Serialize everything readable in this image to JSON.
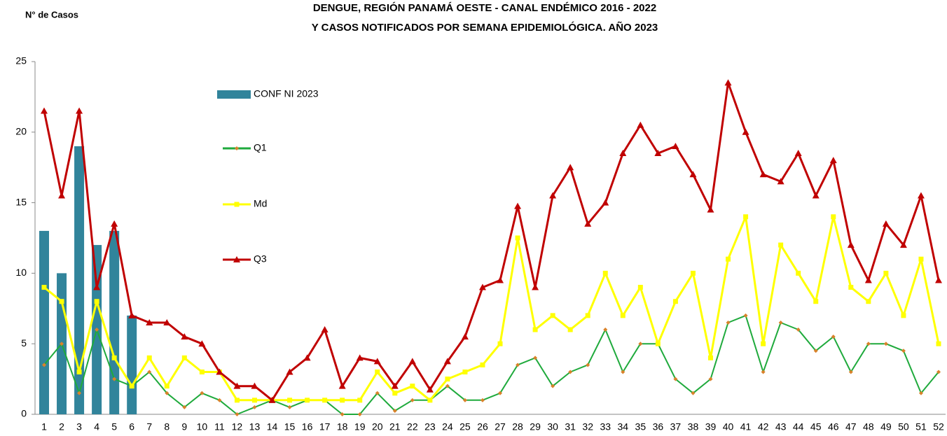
{
  "chart_data": {
    "type": "bar-line",
    "title": [
      "DENGUE, REGIÓN PANAMÁ OESTE - CANAL ENDÉMICO 2016 - 2022",
      "Y CASOS NOTIFICADOS POR SEMANA EPIDEMIOLÓGICA. AÑO 2023"
    ],
    "y_label": "N° de Casos",
    "categories": [
      "1",
      "2",
      "3",
      "4",
      "5",
      "6",
      "7",
      "8",
      "9",
      "10",
      "11",
      "12",
      "13",
      "14",
      "15",
      "16",
      "17",
      "18",
      "19",
      "20",
      "21",
      "22",
      "23",
      "24",
      "25",
      "26",
      "27",
      "28",
      "29",
      "30",
      "31",
      "32",
      "33",
      "34",
      "35",
      "36",
      "37",
      "38",
      "39",
      "40",
      "41",
      "42",
      "43",
      "44",
      "45",
      "46",
      "47",
      "48",
      "49",
      "50",
      "51",
      "52"
    ],
    "ylim": [
      0,
      25
    ],
    "yticks": [
      0,
      5,
      10,
      15,
      20,
      25
    ],
    "grid": false,
    "series": [
      {
        "name": "CONF NI 2023",
        "type": "bar",
        "color": "#31849b",
        "values": [
          13,
          10,
          19,
          12,
          13,
          7,
          null,
          null,
          null,
          null,
          null,
          null,
          null,
          null,
          null,
          null,
          null,
          null,
          null,
          null,
          null,
          null,
          null,
          null,
          null,
          null,
          null,
          null,
          null,
          null,
          null,
          null,
          null,
          null,
          null,
          null,
          null,
          null,
          null,
          null,
          null,
          null,
          null,
          null,
          null,
          null,
          null,
          null,
          null,
          null,
          null,
          null
        ]
      },
      {
        "name": "Q1",
        "type": "line",
        "color": "#1faa3c",
        "marker": "diamond",
        "marker_color": "#d9822b",
        "values": [
          3.5,
          5,
          1.5,
          6,
          2.5,
          2,
          3,
          1.5,
          0.5,
          1.5,
          1,
          0,
          0.5,
          1,
          0.5,
          1,
          1,
          0,
          0,
          1.5,
          0.25,
          1,
          1,
          2,
          1,
          1,
          1.5,
          3.5,
          4,
          2,
          3,
          3.5,
          6,
          3,
          5,
          5,
          2.5,
          1.5,
          2.5,
          6.5,
          7,
          3,
          6.5,
          6,
          4.5,
          5.5,
          3,
          5,
          5,
          4.5,
          1.5,
          3
        ]
      },
      {
        "name": "Md",
        "type": "line",
        "color": "#ffff00",
        "marker": "square",
        "marker_color": "#ffff00",
        "values": [
          9,
          8,
          3,
          8,
          4,
          2,
          4,
          2,
          4,
          3,
          3,
          1,
          1,
          1,
          1,
          1,
          1,
          1,
          1,
          3,
          1.5,
          2,
          1,
          2.5,
          3,
          3.5,
          5,
          12.5,
          6,
          7,
          6,
          7,
          10,
          7,
          9,
          5,
          8,
          10,
          4,
          11,
          14,
          5,
          12,
          10,
          8,
          14,
          9,
          8,
          10,
          7,
          11,
          5
        ]
      },
      {
        "name": "Q3",
        "type": "line",
        "color": "#c00000",
        "marker": "triangle",
        "marker_color": "#c00000",
        "values": [
          21.5,
          15.5,
          21.5,
          9,
          13.5,
          7,
          6.5,
          6.5,
          5.5,
          5,
          3,
          2,
          2,
          1,
          3,
          4,
          6,
          2,
          4,
          3.75,
          2,
          3.75,
          1.75,
          3.75,
          5.5,
          9,
          9.5,
          14.75,
          9,
          15.5,
          17.5,
          13.5,
          15,
          18.5,
          20.5,
          18.5,
          19,
          17,
          14.5,
          23.5,
          20,
          17,
          16.5,
          18.5,
          15.5,
          18,
          12,
          9.5,
          13.5,
          12,
          15.5,
          9.5
        ]
      }
    ]
  }
}
